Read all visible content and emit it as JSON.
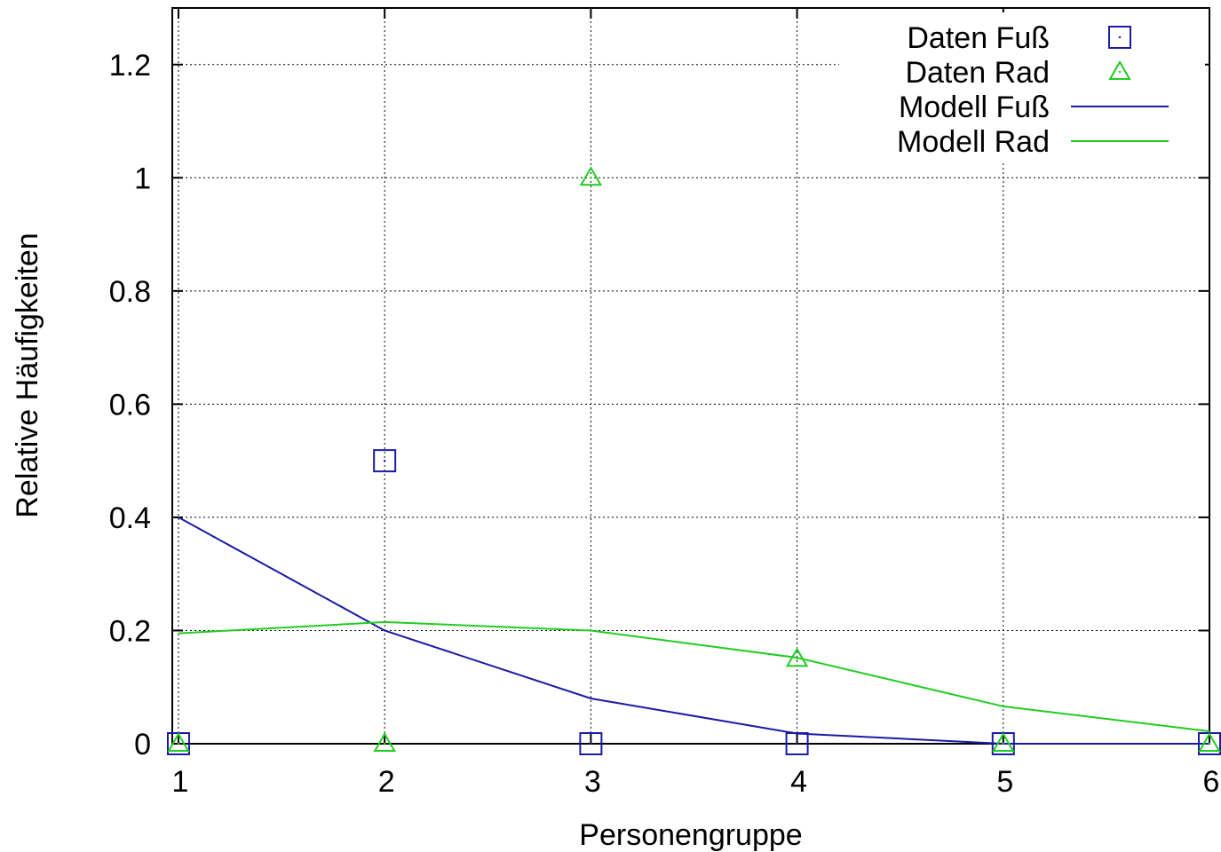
{
  "chart_data": {
    "type": "scatter",
    "xlabel": "Personengruppe",
    "ylabel": "Relative Häufigkeiten",
    "xlim": [
      0.97,
      6.0
    ],
    "ylim": [
      0,
      1.3
    ],
    "xticks": [
      1,
      2,
      3,
      4,
      5,
      6
    ],
    "yticks": [
      0,
      0.2,
      0.4,
      0.6,
      0.8,
      1,
      1.2
    ],
    "grid": true,
    "legend_position": "top-right",
    "series": [
      {
        "name": "Daten Fuß",
        "kind": "points",
        "marker": "square",
        "color": "#1a1aa6",
        "x": [
          1,
          2,
          3,
          4,
          5,
          6
        ],
        "y": [
          0,
          0.5,
          0,
          0,
          0,
          0
        ]
      },
      {
        "name": "Daten Rad",
        "kind": "points",
        "marker": "triangle",
        "color": "#22cc22",
        "x": [
          1,
          2,
          3,
          4,
          5,
          6
        ],
        "y": [
          0,
          0,
          1.0,
          0.15,
          0,
          0
        ]
      },
      {
        "name": "Modell Fuß",
        "kind": "line",
        "color": "#1a1aa6",
        "x": [
          1,
          2,
          3,
          4,
          5,
          6
        ],
        "y": [
          0.4,
          0.2,
          0.08,
          0.018,
          0.0,
          0.0
        ]
      },
      {
        "name": "Modell Rad",
        "kind": "line",
        "color": "#22cc22",
        "x": [
          1,
          2,
          3,
          4,
          5,
          6
        ],
        "y": [
          0.195,
          0.215,
          0.2,
          0.152,
          0.066,
          0.022
        ]
      }
    ]
  }
}
